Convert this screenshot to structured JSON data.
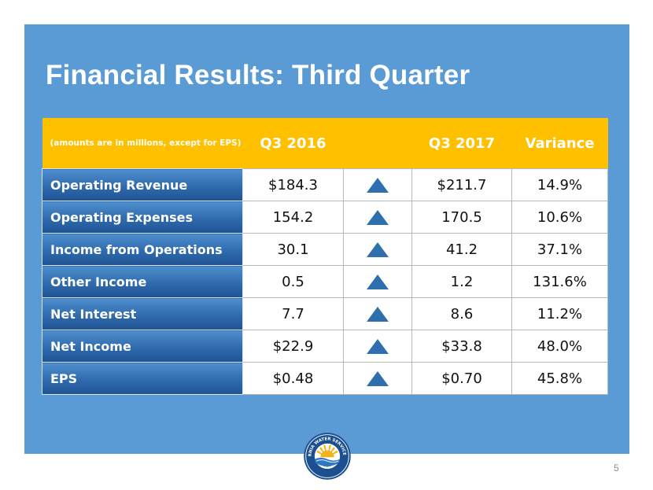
{
  "slide": {
    "title": "Financial Results: Third Quarter",
    "page_number": "5"
  },
  "table": {
    "header": {
      "note": "(amounts are in millions, except for EPS)",
      "col1": "Q3 2016",
      "col2": "",
      "col3": "Q3 2017",
      "col4": "Variance"
    },
    "rows": [
      {
        "label": "Operating Revenue",
        "q3_2016": "$184.3",
        "trend": "up-arrow",
        "q3_2017": "$211.7",
        "variance": "14.9%"
      },
      {
        "label": "Operating Expenses",
        "q3_2016": "154.2",
        "trend": "up-arrow",
        "q3_2017": "170.5",
        "variance": "10.6%"
      },
      {
        "label": "Income from Operations",
        "q3_2016": "30.1",
        "trend": "up-arrow",
        "q3_2017": "41.2",
        "variance": "37.1%"
      },
      {
        "label": "Other Income",
        "q3_2016": "0.5",
        "trend": "up-arrow",
        "q3_2017": "1.2",
        "variance": "131.6%"
      },
      {
        "label": "Net Interest",
        "q3_2016": "7.7",
        "trend": "up-arrow",
        "q3_2017": "8.6",
        "variance": "11.2%"
      },
      {
        "label": "Net Income",
        "q3_2016": "$22.9",
        "trend": "up-arrow",
        "q3_2017": "$33.8",
        "variance": "48.0%"
      },
      {
        "label": "EPS",
        "q3_2016": "$0.48",
        "trend": "up-arrow",
        "q3_2017": "$0.70",
        "variance": "45.8%"
      }
    ]
  },
  "logo": {
    "icon": "california-water-service-group-logo",
    "text": "CALIFORNIA WATER SERVICE GROUP"
  },
  "colors": {
    "panel": "#5B9BD5",
    "header": "#FFC000",
    "label_cell": "#2F6AAD",
    "arrow": "#2F6FAE"
  }
}
